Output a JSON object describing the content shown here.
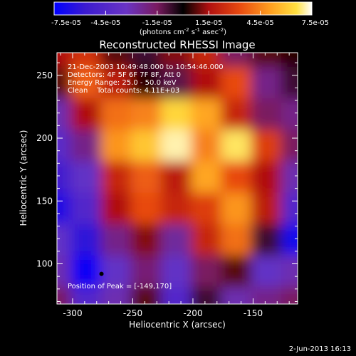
{
  "chart_data": {
    "type": "heatmap",
    "title": "Reconstructed RHESSI Image",
    "xlabel": "Heliocentric X (arcsec)",
    "ylabel": "Heliocentric Y (arcsec)",
    "xlim": [
      -313,
      -113
    ],
    "ylim": [
      68,
      268
    ],
    "x_ticks": [
      "-300",
      "-250",
      "-200",
      "-150"
    ],
    "x_tick_values": [
      -300,
      -250,
      -200,
      -150
    ],
    "y_ticks": [
      "100",
      "150",
      "200",
      "250"
    ],
    "y_tick_values": [
      100,
      150,
      200,
      250
    ],
    "colorbar": {
      "min": -7.5e-05,
      "max": 7.5e-05,
      "tick_labels": [
        "-7.5e-05",
        "-4.5e-05",
        "-1.5e-05",
        "1.5e-05",
        "4.5e-05",
        "7.5e-05"
      ],
      "unit_prefix": "(photons cm",
      "unit_sup1": "-2",
      "unit_mid": " s",
      "unit_sup2": "-1",
      "unit_mid2": " asec",
      "unit_sup3": "-2",
      "unit_suffix": ")"
    },
    "colormap": [
      "#0000ff",
      "#3b1bd0",
      "#6a34c4",
      "#8a2fa0",
      "#7a1a3a",
      "#000000",
      "#a01010",
      "#e03010",
      "#ff7a10",
      "#ffb020",
      "#ffe040",
      "#ffffff"
    ],
    "annotations": {
      "time_range": "21-Dec-2003 10:49:48.000 to 10:54:46.000",
      "detectors": "Detectors: 4F 5F 6F 7F 8F, Att 0",
      "energy": "Energy Range: 25.0 - 50.0 keV",
      "clean": "Clean    Total counts: 4.11E+03",
      "peak": "Position of Peak = [-149,170]"
    },
    "peak": [
      -149,
      170
    ],
    "marker": [
      -276,
      92
    ],
    "intensity_map": {
      "grid_x": [
        -313,
        -288,
        -263,
        -238,
        -213,
        -188,
        -163,
        -138,
        -113
      ],
      "grid_y": [
        268,
        243,
        218,
        193,
        168,
        143,
        118,
        93,
        68
      ],
      "values": [
        [
          0.2,
          0.35,
          0.1,
          -0.1,
          0.15,
          0.3,
          -0.2,
          0.1,
          0.05
        ],
        [
          0.1,
          0.5,
          0.25,
          0.05,
          -0.15,
          0.2,
          0.45,
          -0.3,
          -0.1
        ],
        [
          -0.4,
          0.2,
          0.55,
          0.6,
          0.85,
          0.7,
          0.3,
          -0.2,
          -0.3
        ],
        [
          -0.55,
          -0.3,
          0.65,
          0.8,
          0.95,
          0.6,
          0.9,
          0.4,
          -0.2
        ],
        [
          -0.7,
          -0.5,
          0.3,
          0.5,
          0.25,
          0.7,
          0.45,
          0.2,
          -0.4
        ],
        [
          -0.85,
          -0.6,
          0.2,
          0.45,
          0.3,
          0.4,
          0.65,
          0.25,
          -0.6
        ],
        [
          -0.5,
          -0.8,
          -0.3,
          0.15,
          -0.35,
          0.3,
          0.55,
          -0.1,
          -0.9
        ],
        [
          -0.4,
          -0.95,
          -0.5,
          -0.25,
          -0.5,
          -0.2,
          0.1,
          -0.5,
          -0.4
        ],
        [
          -0.2,
          -0.6,
          -0.4,
          0.1,
          -0.6,
          -0.1,
          -0.4,
          -0.3,
          -0.2
        ]
      ]
    }
  },
  "footer": {
    "date": "2-Jun-2013 16:13"
  }
}
